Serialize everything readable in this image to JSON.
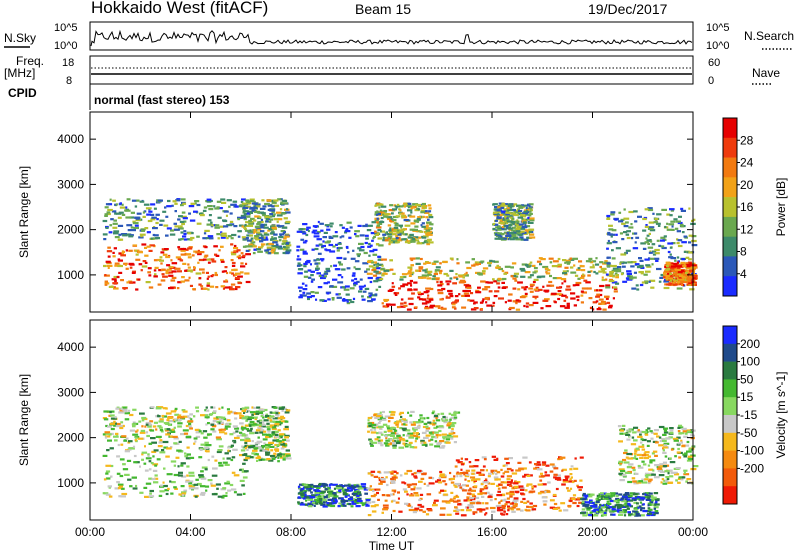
{
  "header": {
    "station": "Hokkaido West (fitACF)",
    "beam": "Beam 15",
    "date": "19/Dec/2017"
  },
  "top_panel": {
    "nsky_label": "N.Sky",
    "nsearch_label": "N.Search",
    "left_ticks": [
      "10^5",
      "10^0"
    ],
    "right_ticks": [
      "10^5",
      "10^0"
    ],
    "freq_label_1": "Freq.",
    "freq_label_2": "[MHz]",
    "freq_ticks": [
      "18",
      "8"
    ],
    "nave_label": "Nave",
    "nave_ticks": [
      "60",
      "0"
    ],
    "cpid_label": "CPID",
    "mode_text": "normal (fast stereo) 153"
  },
  "chart_data": [
    {
      "type": "heatmap",
      "title": "",
      "xlabel": "Time UT",
      "ylabel": "Slant Range [km]",
      "x_ticks": [
        "00:00",
        "04:00",
        "08:00",
        "12:00",
        "16:00",
        "20:00",
        "00:00"
      ],
      "x_hours": [
        0,
        4,
        8,
        12,
        16,
        20,
        24
      ],
      "y_ticks": [
        1000,
        2000,
        3000,
        4000
      ],
      "ylim": [
        180,
        4600
      ],
      "colorbar": {
        "label": "Power [dB]",
        "ticks": [
          4,
          8,
          12,
          16,
          20,
          24,
          28
        ],
        "range": [
          0,
          32
        ],
        "colors": [
          "#1a2bff",
          "#2b58b8",
          "#3d8a6a",
          "#6aa84f",
          "#b8c12e",
          "#f2a218",
          "#f27a10",
          "#ef3a0c",
          "#e60000"
        ]
      },
      "echo_regions": [
        {
          "t0": 0.5,
          "t1": 6.2,
          "r0": 700,
          "r1": 1700,
          "level": 0.75
        },
        {
          "t0": 0.5,
          "t1": 6.2,
          "r0": 1800,
          "r1": 2700,
          "level": 0.3
        },
        {
          "t0": 6.0,
          "t1": 7.8,
          "r0": 1500,
          "r1": 2700,
          "level": 0.35
        },
        {
          "t0": 8.2,
          "t1": 11.5,
          "r0": 400,
          "r1": 2200,
          "level": 0.15
        },
        {
          "t0": 11.3,
          "t1": 13.5,
          "r0": 1700,
          "r1": 2600,
          "level": 0.45
        },
        {
          "t0": 11.5,
          "t1": 21.0,
          "r0": 250,
          "r1": 900,
          "level": 0.9
        },
        {
          "t0": 11.0,
          "t1": 21.0,
          "r0": 900,
          "r1": 1400,
          "level": 0.5
        },
        {
          "t0": 16.0,
          "t1": 17.5,
          "r0": 1800,
          "r1": 2600,
          "level": 0.35
        },
        {
          "t0": 20.5,
          "t1": 24.0,
          "r0": 700,
          "r1": 2500,
          "level": 0.3
        },
        {
          "t0": 22.8,
          "t1": 24.0,
          "r0": 800,
          "r1": 1300,
          "level": 0.75
        }
      ]
    },
    {
      "type": "heatmap",
      "title": "",
      "xlabel": "Time UT",
      "ylabel": "Slant Range [km]",
      "x_ticks": [
        "00:00",
        "04:00",
        "08:00",
        "12:00",
        "16:00",
        "20:00",
        "00:00"
      ],
      "x_hours": [
        0,
        4,
        8,
        12,
        16,
        20,
        24
      ],
      "y_ticks": [
        1000,
        2000,
        3000,
        4000
      ],
      "ylim": [
        180,
        4600
      ],
      "colorbar": {
        "label": "Velocity [m s^-1]",
        "ticks": [
          200,
          100,
          50,
          15,
          -15,
          -50,
          -100,
          -200
        ],
        "colors": [
          "#1a2bff",
          "#1f4a8a",
          "#2a7a40",
          "#44b830",
          "#88d860",
          "#c8c8c8",
          "#f5b81c",
          "#f58a10",
          "#f25a0a",
          "#ef1a05"
        ]
      },
      "echo_regions": [
        {
          "t0": 0.5,
          "t1": 6.2,
          "r0": 700,
          "r1": 2000,
          "level": 0.45
        },
        {
          "t0": 0.5,
          "t1": 6.2,
          "r0": 2000,
          "r1": 2700,
          "level": 0.5
        },
        {
          "t0": 6.0,
          "t1": 7.8,
          "r0": 1500,
          "r1": 2700,
          "level": 0.45
        },
        {
          "t0": 8.2,
          "t1": 11.0,
          "r0": 500,
          "r1": 1000,
          "level": 0.2
        },
        {
          "t0": 11.0,
          "t1": 14.5,
          "r0": 1800,
          "r1": 2600,
          "level": 0.5
        },
        {
          "t0": 11.0,
          "t1": 17.0,
          "r0": 300,
          "r1": 1300,
          "level": 0.75
        },
        {
          "t0": 14.5,
          "t1": 19.5,
          "r0": 400,
          "r1": 1600,
          "level": 0.8
        },
        {
          "t0": 19.5,
          "t1": 22.5,
          "r0": 300,
          "r1": 800,
          "level": 0.25
        },
        {
          "t0": 21.0,
          "t1": 24.0,
          "r0": 1000,
          "r1": 2300,
          "level": 0.5
        }
      ]
    }
  ]
}
